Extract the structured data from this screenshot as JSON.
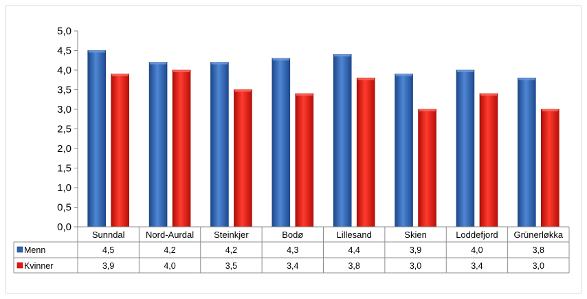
{
  "chart_data": {
    "type": "bar",
    "categories": [
      "Sunndal",
      "Nord-Aurdal",
      "Steinkjer",
      "Bodø",
      "Lillesand",
      "Skien",
      "Loddefjord",
      "Grünerløkka"
    ],
    "series": [
      {
        "name": "Menn",
        "color": "#2e62b0",
        "values": [
          4.5,
          4.2,
          4.2,
          4.3,
          4.4,
          3.9,
          4.0,
          3.8
        ],
        "labels": [
          "4,5",
          "4,2",
          "4,2",
          "4,3",
          "4,4",
          "3,9",
          "4,0",
          "3,8"
        ]
      },
      {
        "name": "Kvinner",
        "color": "#e8170f",
        "values": [
          3.9,
          4.0,
          3.5,
          3.4,
          3.8,
          3.0,
          3.4,
          3.0
        ],
        "labels": [
          "3,9",
          "4,0",
          "3,5",
          "3,4",
          "3,8",
          "3,0",
          "3,4",
          "3,0"
        ]
      }
    ],
    "ylim": [
      0,
      5
    ],
    "yticks": [
      0,
      0.5,
      1,
      1.5,
      2,
      2.5,
      3,
      3.5,
      4,
      4.5,
      5
    ],
    "ytick_labels": [
      "0,0",
      "0,5",
      "1,0",
      "1,5",
      "2,0",
      "2,5",
      "3,0",
      "3,5",
      "4,0",
      "4,5",
      "5,0"
    ],
    "grid": false,
    "legend": "data-table",
    "title": "",
    "xlabel": "",
    "ylabel": ""
  }
}
